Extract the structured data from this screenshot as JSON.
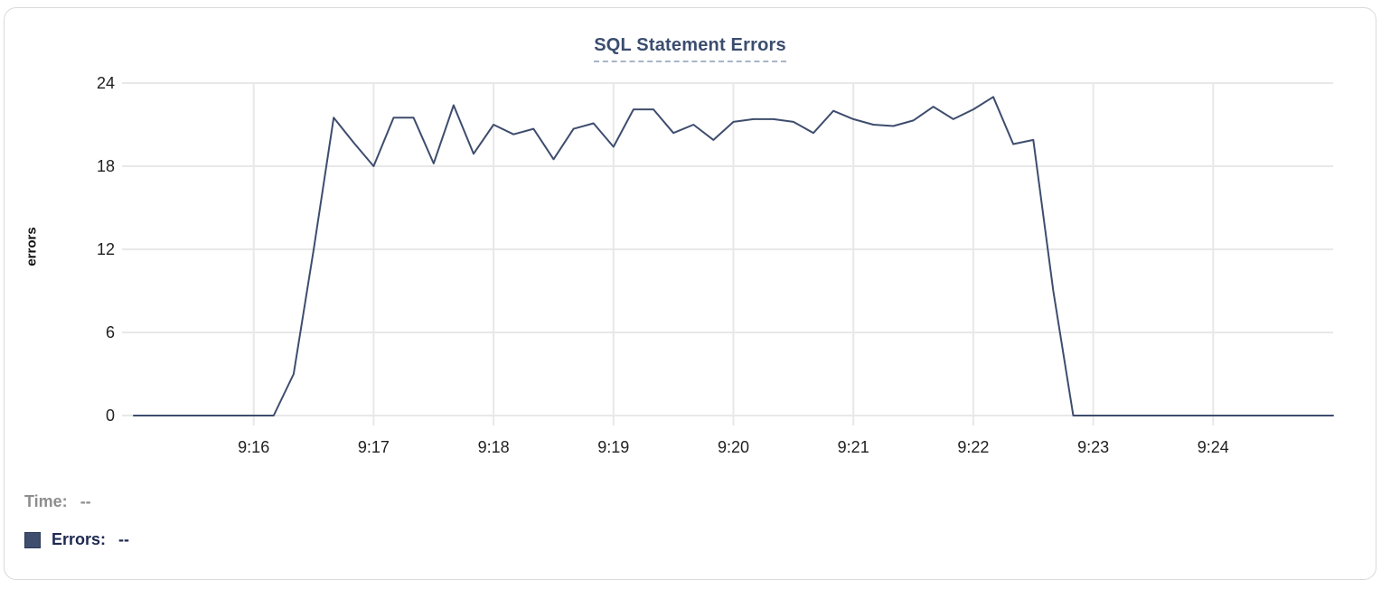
{
  "card": {
    "title": "SQL Statement Errors"
  },
  "chart_data": {
    "type": "line",
    "title": "SQL Statement Errors",
    "xlabel": "",
    "ylabel": "errors",
    "x_start_time": "9:15:00",
    "x_end_time": "9:25:00",
    "interval_seconds": 10,
    "x_tick_labels": [
      "9:16",
      "9:17",
      "9:18",
      "9:19",
      "9:20",
      "9:21",
      "9:22",
      "9:23",
      "9:24"
    ],
    "y_ticks": [
      0,
      6,
      12,
      18,
      24
    ],
    "ylim": [
      0,
      24
    ],
    "grid": true,
    "legend_position": "bottom-left",
    "series": [
      {
        "name": "Errors",
        "values": [
          0,
          0,
          0,
          0,
          0,
          0,
          0,
          0,
          3,
          12,
          21.5,
          19.7,
          18,
          21.5,
          21.5,
          18.2,
          22.4,
          18.9,
          21,
          20.3,
          20.7,
          18.5,
          20.7,
          21.1,
          19.4,
          22.1,
          22.1,
          20.4,
          21,
          19.9,
          21.2,
          21.4,
          21.4,
          21.2,
          20.4,
          22,
          21.4,
          21,
          20.9,
          21.3,
          22.3,
          21.4,
          22.1,
          23,
          19.6,
          19.9,
          9,
          0,
          0,
          0,
          0,
          0,
          0,
          0,
          0,
          0,
          0,
          0,
          0,
          0,
          0
        ]
      }
    ]
  },
  "tooltip": {
    "time_label": "Time:",
    "time_value": "--",
    "errors_label": "Errors:",
    "errors_value": "--"
  },
  "colors": {
    "line": "#3e4d6e",
    "grid": "#e8e8e8",
    "title": "#3b4d6e",
    "title_underline": "#a9b4c6",
    "tick_text": "#1f1f1f",
    "time_label": "#8e8e8e",
    "errors_label": "#1d2950",
    "swatch": "#3f4e6c",
    "card_border": "#d9d9d9"
  }
}
